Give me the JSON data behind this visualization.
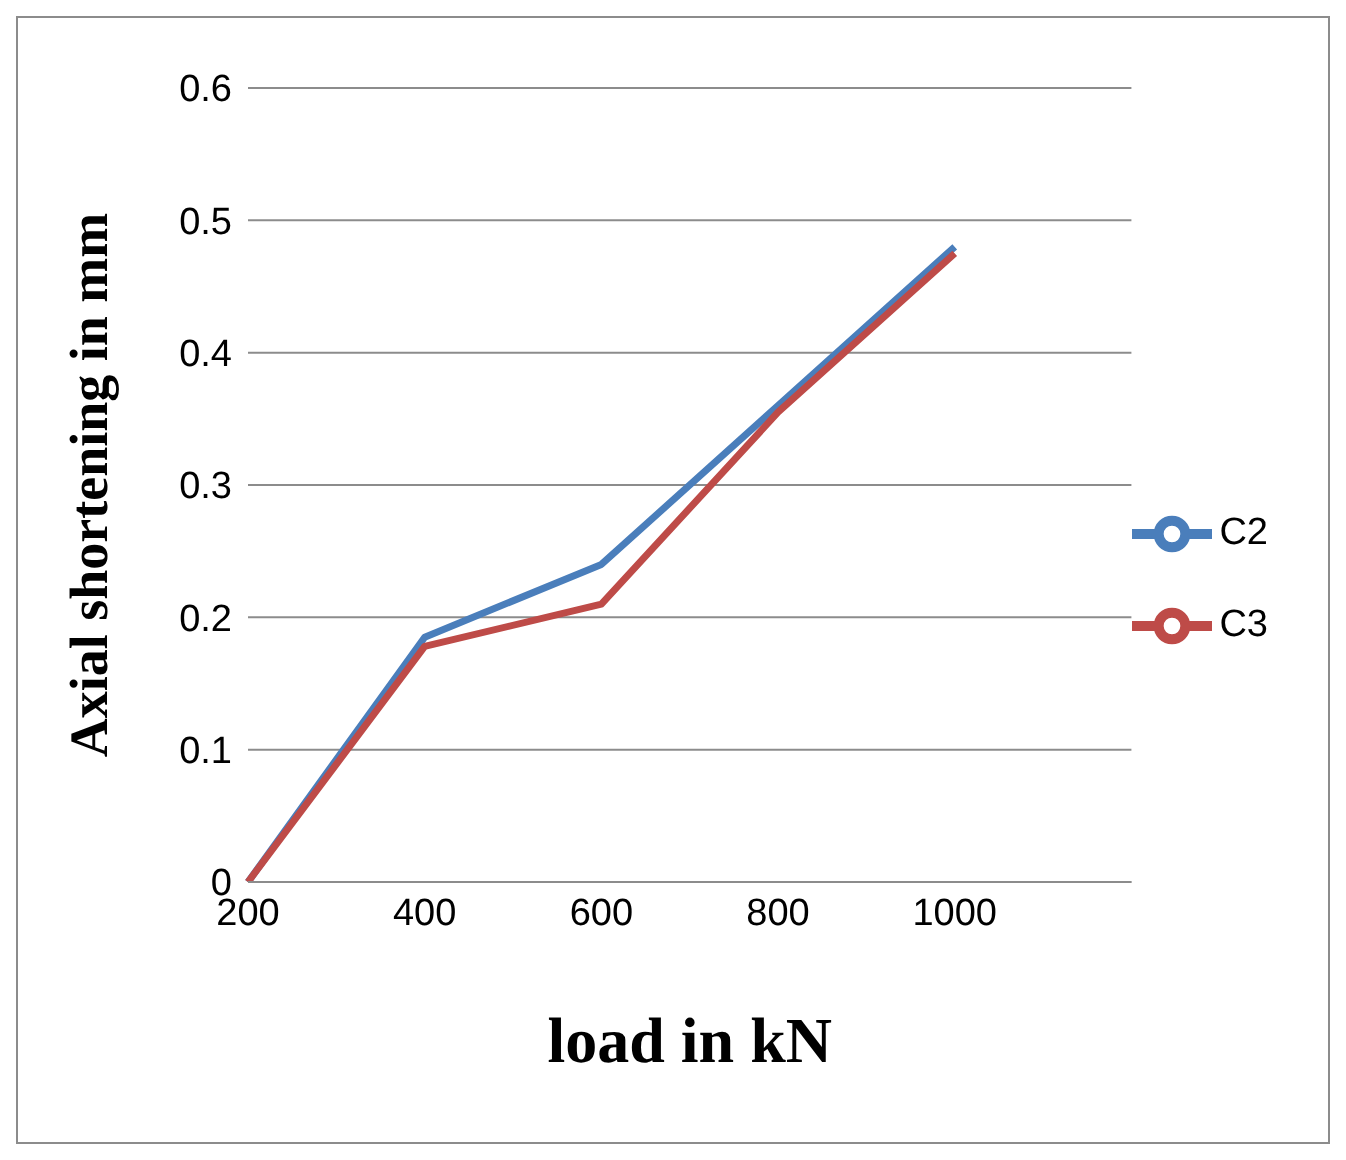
{
  "chart_data": {
    "type": "line",
    "xlabel": "load in kN",
    "ylabel": "Axial shortening in mm",
    "categories": [
      "200",
      "400",
      "600",
      "800",
      "1000",
      null
    ],
    "series": [
      {
        "name": "C2",
        "color": "#4a7ebb",
        "values": [
          0,
          0.185,
          0.24,
          0.36,
          0.48,
          null
        ]
      },
      {
        "name": "C3",
        "color": "#be4b48",
        "values": [
          0,
          0.178,
          0.21,
          0.355,
          0.475,
          null
        ]
      }
    ],
    "ylim": [
      0,
      0.6
    ],
    "yticks": [
      0,
      0.1,
      0.2,
      0.3,
      0.4,
      0.5,
      0.6
    ],
    "grid": "y",
    "legend": "right",
    "marker": "none",
    "line_style": "solid"
  }
}
